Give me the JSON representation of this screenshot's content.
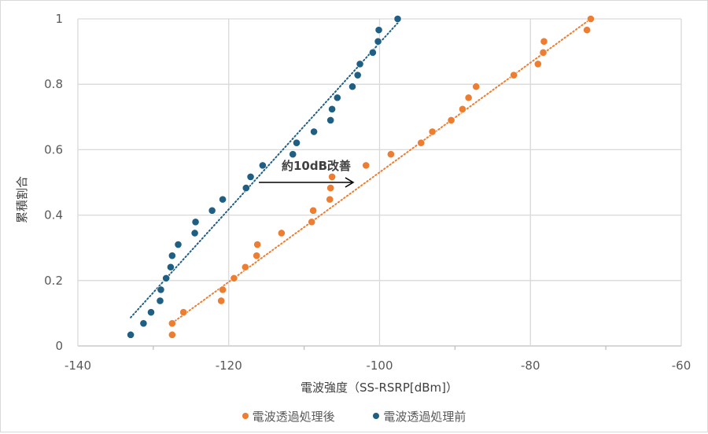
{
  "chart_data": {
    "type": "scatter",
    "title": "",
    "xlabel": "電波強度（SS-RSRP[dBm]）",
    "ylabel": "累積割合",
    "xlim": [
      -140,
      -60
    ],
    "ylim": [
      0,
      1
    ],
    "xticks": [
      -140,
      -120,
      -100,
      -80,
      -60
    ],
    "yticks": [
      0,
      0.2,
      0.4,
      0.6,
      0.8,
      1
    ],
    "xtick_labels": [
      "-140",
      "-120",
      "-100",
      "-80",
      "-60"
    ],
    "ytick_labels": [
      "0",
      "0.2",
      "0.4",
      "0.6",
      "0.8",
      "1"
    ],
    "grid": true,
    "legend_position": "bottom",
    "annotation": {
      "text": "約10dB改善",
      "arrow_from": [
        -116,
        0.5
      ],
      "arrow_to": [
        -103.5,
        0.5
      ]
    },
    "series": [
      {
        "name": "電波透過処理後",
        "color": "#ED7D31",
        "trendline": {
          "style": "dotted",
          "from": [
            -127.5,
            0.07
          ],
          "to": [
            -72,
            1.0
          ]
        },
        "points": [
          [
            -127.5,
            0.034
          ],
          [
            -127.5,
            0.069
          ],
          [
            -126,
            0.103
          ],
          [
            -121,
            0.138
          ],
          [
            -120.8,
            0.172
          ],
          [
            -119.3,
            0.207
          ],
          [
            -117.8,
            0.241
          ],
          [
            -116.3,
            0.276
          ],
          [
            -116.2,
            0.31
          ],
          [
            -113,
            0.345
          ],
          [
            -109,
            0.379
          ],
          [
            -108.8,
            0.414
          ],
          [
            -106.6,
            0.448
          ],
          [
            -106.5,
            0.483
          ],
          [
            -106.3,
            0.517
          ],
          [
            -101.8,
            0.552
          ],
          [
            -98.5,
            0.586
          ],
          [
            -94.5,
            0.621
          ],
          [
            -93,
            0.655
          ],
          [
            -90.5,
            0.69
          ],
          [
            -89,
            0.724
          ],
          [
            -88.2,
            0.759
          ],
          [
            -87.2,
            0.793
          ],
          [
            -82.2,
            0.828
          ],
          [
            -79,
            0.862
          ],
          [
            -78.3,
            0.897
          ],
          [
            -78.2,
            0.931
          ],
          [
            -72.5,
            0.966
          ],
          [
            -72,
            1.0
          ]
        ]
      },
      {
        "name": "電波透過処理前",
        "color": "#1F5F84",
        "trendline": {
          "style": "dotted",
          "from": [
            -133,
            0.087
          ],
          "to": [
            -97.5,
            0.99
          ]
        },
        "points": [
          [
            -133,
            0.034
          ],
          [
            -131.3,
            0.069
          ],
          [
            -130.3,
            0.103
          ],
          [
            -129.1,
            0.138
          ],
          [
            -129,
            0.172
          ],
          [
            -128.3,
            0.207
          ],
          [
            -127.7,
            0.241
          ],
          [
            -127.5,
            0.276
          ],
          [
            -126.7,
            0.31
          ],
          [
            -124.5,
            0.345
          ],
          [
            -124.4,
            0.379
          ],
          [
            -122.2,
            0.414
          ],
          [
            -120.8,
            0.448
          ],
          [
            -117.7,
            0.483
          ],
          [
            -117.1,
            0.517
          ],
          [
            -115.5,
            0.552
          ],
          [
            -111.5,
            0.586
          ],
          [
            -111,
            0.621
          ],
          [
            -108.7,
            0.655
          ],
          [
            -106.5,
            0.69
          ],
          [
            -106.3,
            0.724
          ],
          [
            -105.6,
            0.759
          ],
          [
            -103.6,
            0.793
          ],
          [
            -102.9,
            0.828
          ],
          [
            -102.6,
            0.862
          ],
          [
            -100.9,
            0.897
          ],
          [
            -100.2,
            0.931
          ],
          [
            -100.1,
            0.966
          ],
          [
            -97.6,
            1.0
          ]
        ]
      }
    ]
  },
  "legend": [
    {
      "label": "電波透過処理後",
      "color": "#ED7D31"
    },
    {
      "label": "電波透過処理前",
      "color": "#1F5F84"
    }
  ]
}
